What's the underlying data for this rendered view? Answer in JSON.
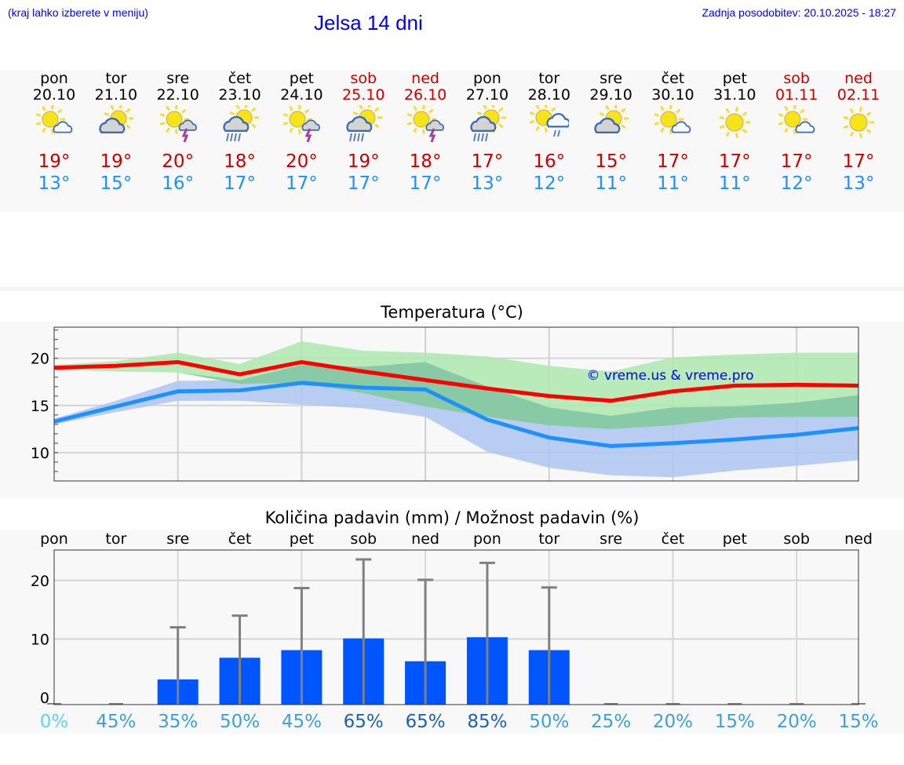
{
  "header": {
    "hint": "(kraj lahko izberete v meniju)",
    "title": "Jelsa 14 dni",
    "updated": "Zadnja posodobitev: 20.10.2025 - 18:27"
  },
  "days": [
    {
      "name": "pon",
      "date": "20.10",
      "max": "19°",
      "min": "13°",
      "weekend": false,
      "icon": "sun-small-cloud"
    },
    {
      "name": "tor",
      "date": "21.10",
      "max": "19°",
      "min": "15°",
      "weekend": false,
      "icon": "cloud-sun"
    },
    {
      "name": "sre",
      "date": "22.10",
      "max": "20°",
      "min": "16°",
      "weekend": false,
      "icon": "sun-thunder"
    },
    {
      "name": "čet",
      "date": "23.10",
      "max": "18°",
      "min": "17°",
      "weekend": false,
      "icon": "sun-rain"
    },
    {
      "name": "pet",
      "date": "24.10",
      "max": "20°",
      "min": "17°",
      "weekend": false,
      "icon": "sun-thunder"
    },
    {
      "name": "sob",
      "date": "25.10",
      "max": "19°",
      "min": "17°",
      "weekend": true,
      "icon": "sun-rain"
    },
    {
      "name": "ned",
      "date": "26.10",
      "max": "18°",
      "min": "17°",
      "weekend": true,
      "icon": "sun-thunder"
    },
    {
      "name": "pon",
      "date": "27.10",
      "max": "17°",
      "min": "13°",
      "weekend": false,
      "icon": "sun-rain"
    },
    {
      "name": "tor",
      "date": "28.10",
      "max": "16°",
      "min": "12°",
      "weekend": false,
      "icon": "sun-cloud-drizzle"
    },
    {
      "name": "sre",
      "date": "29.10",
      "max": "15°",
      "min": "11°",
      "weekend": false,
      "icon": "cloud-sun"
    },
    {
      "name": "čet",
      "date": "30.10",
      "max": "17°",
      "min": "11°",
      "weekend": false,
      "icon": "sun-small-cloud"
    },
    {
      "name": "pet",
      "date": "31.10",
      "max": "17°",
      "min": "11°",
      "weekend": false,
      "icon": "sun"
    },
    {
      "name": "sob",
      "date": "01.11",
      "max": "17°",
      "min": "12°",
      "weekend": true,
      "icon": "sun-small-cloud"
    },
    {
      "name": "ned",
      "date": "02.11",
      "max": "17°",
      "min": "13°",
      "weekend": true,
      "icon": "sun"
    }
  ],
  "colors": {
    "max": "#ff0000",
    "min": "#1e90ff",
    "max_band": "#aee8ae",
    "min_band": "#aec6f2",
    "bar": "#0055ff",
    "err": "#808080",
    "watermark": "#0000ee"
  },
  "chart_data": [
    {
      "type": "line",
      "title": "Temperatura (°C)",
      "watermark": "© vreme.us & vreme.pro",
      "ylim": [
        7,
        23.3
      ],
      "yticks": [
        "10",
        "15",
        "20"
      ],
      "ytick_values": [
        10,
        15,
        20
      ],
      "grid": true,
      "series": [
        {
          "name": "max",
          "values": [
            19.0,
            19.2,
            19.6,
            18.3,
            19.6,
            18.6,
            17.7,
            16.8,
            16.0,
            15.5,
            16.5,
            17.1,
            17.2,
            17.1
          ]
        },
        {
          "name": "min",
          "values": [
            13.3,
            14.9,
            16.5,
            16.6,
            17.4,
            16.9,
            16.7,
            13.5,
            11.6,
            10.7,
            11.0,
            11.4,
            11.9,
            12.6
          ]
        }
      ],
      "bands": [
        {
          "name": "max-range",
          "upper": [
            19.3,
            19.7,
            20.6,
            19.4,
            21.8,
            20.8,
            20.6,
            20.2,
            19.2,
            18.6,
            20.1,
            20.4,
            20.6,
            20.6
          ],
          "lower": [
            18.8,
            18.6,
            18.5,
            17.3,
            17.4,
            16.3,
            14.9,
            13.8,
            12.9,
            12.5,
            12.9,
            13.7,
            13.8,
            13.8
          ]
        },
        {
          "name": "min-range",
          "upper": [
            13.6,
            15.5,
            17.6,
            17.7,
            19.3,
            19.1,
            19.6,
            17.0,
            14.8,
            13.9,
            14.8,
            14.9,
            15.3,
            16.1
          ],
          "lower": [
            13.0,
            14.3,
            15.5,
            15.5,
            15.1,
            14.7,
            13.8,
            10.1,
            8.4,
            7.6,
            7.4,
            8.1,
            8.6,
            9.2
          ]
        }
      ]
    },
    {
      "type": "bar",
      "title": "Količina padavin (mm) / Možnost padavin (%)",
      "categories": [
        "pon",
        "tor",
        "sre",
        "čet",
        "pet",
        "sob",
        "ned",
        "pon",
        "tor",
        "sre",
        "čet",
        "pet",
        "sob",
        "ned"
      ],
      "values": [
        0,
        0,
        3.1,
        6.8,
        8.1,
        10.1,
        6.2,
        10.3,
        8.1,
        0,
        0,
        0,
        0,
        0
      ],
      "error_max": [
        0,
        0,
        12.0,
        14.0,
        18.7,
        23.6,
        20.1,
        23.0,
        18.8,
        0,
        0,
        0,
        0,
        0
      ],
      "probability": [
        "0%",
        "45%",
        "35%",
        "50%",
        "45%",
        "65%",
        "65%",
        "85%",
        "50%",
        "25%",
        "20%",
        "15%",
        "20%",
        "15%"
      ],
      "probability_values": [
        0,
        45,
        35,
        50,
        45,
        65,
        65,
        85,
        50,
        25,
        20,
        15,
        20,
        15
      ],
      "ylim": [
        -1.2,
        25.2
      ],
      "yticks": [
        "0",
        "10",
        "20"
      ],
      "ytick_values": [
        0,
        10,
        20
      ],
      "grid": true
    }
  ]
}
